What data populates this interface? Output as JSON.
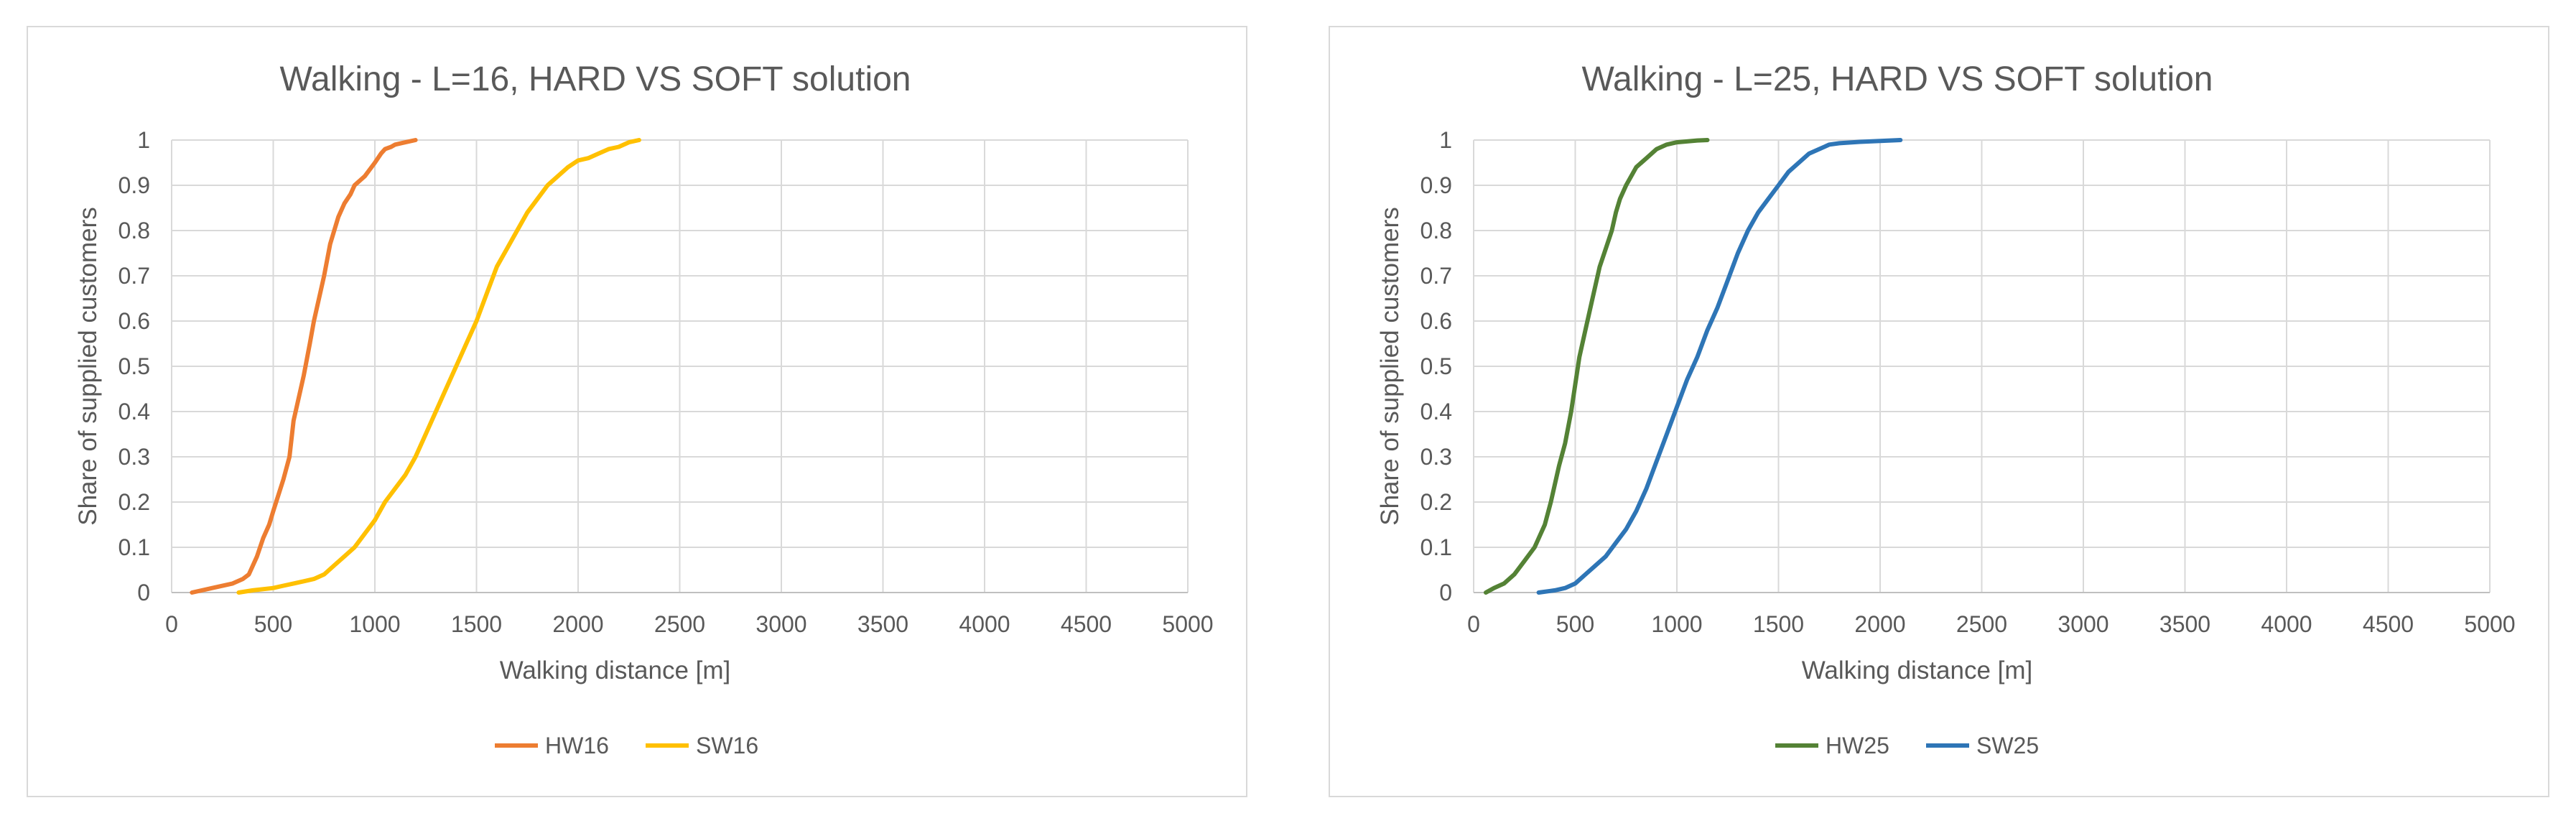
{
  "chart_data": [
    {
      "type": "line",
      "title": "Walking - L=16, HARD VS SOFT solution",
      "xlabel": "Walking distance [m]",
      "ylabel": "Share of supplied customers",
      "xlim": [
        0,
        5000
      ],
      "ylim": [
        0,
        1
      ],
      "x_ticks": [
        "0",
        "500",
        "1000",
        "1500",
        "2000",
        "2500",
        "3000",
        "3500",
        "4000",
        "4500",
        "5000"
      ],
      "y_ticks": [
        "0",
        "0.1",
        "0.2",
        "0.3",
        "0.4",
        "0.5",
        "0.6",
        "0.7",
        "0.8",
        "0.9",
        "1"
      ],
      "grid": true,
      "legend_position": "bottom",
      "series": [
        {
          "name": "HW16",
          "color": "#ed7d31",
          "x": [
            100,
            200,
            300,
            350,
            380,
            420,
            450,
            480,
            500,
            550,
            580,
            600,
            620,
            650,
            680,
            700,
            750,
            780,
            800,
            820,
            850,
            880,
            900,
            950,
            1000,
            1030,
            1050,
            1080,
            1100,
            1150,
            1200
          ],
          "y": [
            0.0,
            0.01,
            0.02,
            0.03,
            0.04,
            0.08,
            0.12,
            0.15,
            0.18,
            0.25,
            0.3,
            0.38,
            0.42,
            0.48,
            0.55,
            0.6,
            0.7,
            0.77,
            0.8,
            0.83,
            0.86,
            0.88,
            0.9,
            0.92,
            0.95,
            0.97,
            0.98,
            0.985,
            0.99,
            0.995,
            1.0
          ]
        },
        {
          "name": "SW16",
          "color": "#ffc000",
          "x": [
            330,
            400,
            500,
            550,
            600,
            650,
            700,
            750,
            800,
            850,
            900,
            950,
            1000,
            1050,
            1100,
            1150,
            1200,
            1250,
            1300,
            1350,
            1400,
            1450,
            1500,
            1550,
            1600,
            1650,
            1700,
            1750,
            1800,
            1850,
            1900,
            1950,
            2000,
            2050,
            2100,
            2150,
            2200,
            2250,
            2300
          ],
          "y": [
            0.0,
            0.005,
            0.01,
            0.015,
            0.02,
            0.025,
            0.03,
            0.04,
            0.06,
            0.08,
            0.1,
            0.13,
            0.16,
            0.2,
            0.23,
            0.26,
            0.3,
            0.35,
            0.4,
            0.45,
            0.5,
            0.55,
            0.6,
            0.66,
            0.72,
            0.76,
            0.8,
            0.84,
            0.87,
            0.9,
            0.92,
            0.94,
            0.955,
            0.96,
            0.97,
            0.98,
            0.985,
            0.995,
            1.0
          ]
        }
      ]
    },
    {
      "type": "line",
      "title": "Walking - L=25, HARD VS SOFT solution",
      "xlabel": "Walking distance [m]",
      "ylabel": "Share of supplied customers",
      "xlim": [
        0,
        5000
      ],
      "ylim": [
        0,
        1
      ],
      "x_ticks": [
        "0",
        "500",
        "1000",
        "1500",
        "2000",
        "2500",
        "3000",
        "3500",
        "4000",
        "4500",
        "5000"
      ],
      "y_ticks": [
        "0",
        "0.1",
        "0.2",
        "0.3",
        "0.4",
        "0.5",
        "0.6",
        "0.7",
        "0.8",
        "0.9",
        "1"
      ],
      "grid": true,
      "legend_position": "bottom",
      "series": [
        {
          "name": "HW25",
          "color": "#548235",
          "x": [
            60,
            100,
            150,
            200,
            250,
            300,
            350,
            380,
            400,
            420,
            450,
            480,
            500,
            520,
            550,
            580,
            600,
            620,
            650,
            680,
            700,
            720,
            750,
            800,
            850,
            900,
            950,
            1000,
            1050,
            1100,
            1150
          ],
          "y": [
            0.0,
            0.01,
            0.02,
            0.04,
            0.07,
            0.1,
            0.15,
            0.2,
            0.24,
            0.28,
            0.33,
            0.4,
            0.46,
            0.52,
            0.58,
            0.64,
            0.68,
            0.72,
            0.76,
            0.8,
            0.84,
            0.87,
            0.9,
            0.94,
            0.96,
            0.98,
            0.99,
            0.995,
            0.997,
            0.999,
            1.0
          ]
        },
        {
          "name": "SW25",
          "color": "#2e75b6",
          "x": [
            320,
            400,
            450,
            500,
            550,
            600,
            650,
            700,
            750,
            800,
            850,
            900,
            950,
            1000,
            1050,
            1100,
            1150,
            1200,
            1250,
            1300,
            1350,
            1400,
            1450,
            1500,
            1550,
            1600,
            1650,
            1700,
            1750,
            1800,
            1900,
            2000,
            2100
          ],
          "y": [
            0.0,
            0.005,
            0.01,
            0.02,
            0.04,
            0.06,
            0.08,
            0.11,
            0.14,
            0.18,
            0.23,
            0.29,
            0.35,
            0.41,
            0.47,
            0.52,
            0.58,
            0.63,
            0.69,
            0.75,
            0.8,
            0.84,
            0.87,
            0.9,
            0.93,
            0.95,
            0.97,
            0.98,
            0.99,
            0.993,
            0.996,
            0.998,
            1.0
          ]
        }
      ]
    }
  ]
}
